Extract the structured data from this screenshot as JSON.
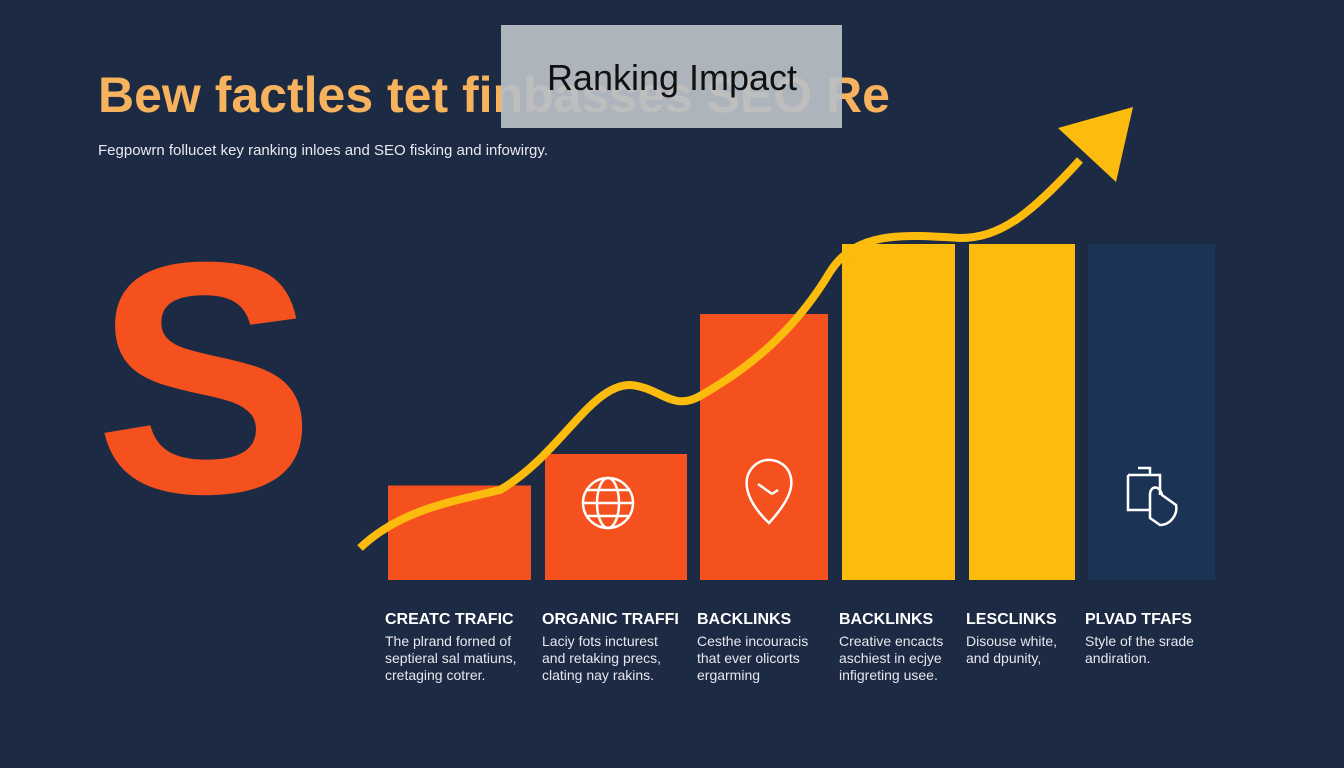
{
  "header": {
    "title": "Bew factles tet finbasses SEO Re",
    "overlay": "Ranking Impact",
    "subtitle": "Fegpowrn follucet key ranking inloes and SEO fisking and infowirgy.",
    "logo": "S"
  },
  "chart_data": {
    "type": "bar",
    "categories": [
      "CREATC TRAFIC",
      "ORGANIC TRAFFI",
      "BACKLINKS",
      "BACKLINKS",
      "LESCLINKS",
      "PLVAD TFAFS"
    ],
    "values": [
      27,
      36,
      76,
      96,
      96,
      96
    ],
    "colors": [
      "#f4511e",
      "#f4511e",
      "#f4511e",
      "#fbbc0d",
      "#fbbc0d",
      "#1b3456"
    ],
    "ylim": [
      0,
      100
    ],
    "descriptions": [
      [
        "The plrand forned of",
        "septieral sal matiuns,",
        "cretaging cotrer."
      ],
      [
        "Laciy fots incturest",
        "and retaking precs,",
        "clating nay rakins."
      ],
      [
        "Cesthe incouracis",
        "that ever olicorts",
        "ergarming"
      ],
      [
        "Creative encacts",
        "aschiest in ecjye",
        "infigreting usee."
      ],
      [
        "Disouse white,",
        "and dpunity,"
      ],
      [
        "Style of the srade",
        "andiration."
      ]
    ]
  }
}
